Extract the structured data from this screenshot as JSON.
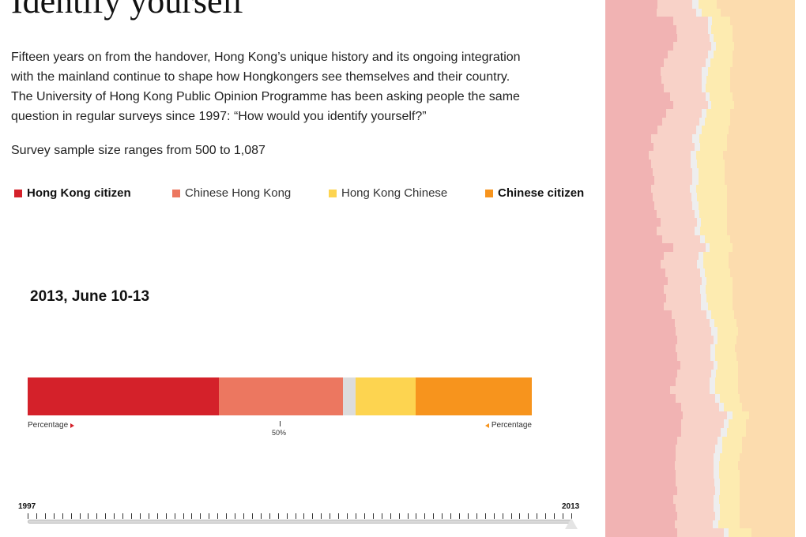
{
  "header": {
    "title": "Identify yourself",
    "intro": [
      "Fifteen years on from the handover, Hong Kong’s unique history and its ongoing integration",
      "with the mainland continue to shape how Hongkongers see themselves and their country.",
      "The University of Hong Kong Public Opinion Programme has been asking people the same",
      "question in regular surveys since 1997: “How would you identify yourself?”"
    ],
    "sample_note": "Survey sample size ranges from 500 to 1,087"
  },
  "legend": [
    {
      "label": "Hong Kong citizen",
      "color": "#d4212a",
      "bold": true
    },
    {
      "label": "Chinese Hong Kong",
      "color": "#ec7760",
      "bold": false
    },
    {
      "label": "Hong Kong Chinese",
      "color": "#fdd450",
      "bold": false
    },
    {
      "label": "Chinese citizen",
      "color": "#f7941d",
      "bold": true
    }
  ],
  "bar_labels": {
    "left": "Percentage",
    "right": "Percentage",
    "mid": "50%"
  },
  "timeline": {
    "start": "1997",
    "end": "2013",
    "selected": "2013",
    "tick_count": 64
  },
  "chart_data": [
    {
      "type": "bar",
      "title": "2013, June 10-13",
      "orientation": "horizontal-stacked",
      "xlim": [
        0,
        100
      ],
      "series": [
        {
          "name": "Hong Kong citizen",
          "values": [
            38
          ]
        },
        {
          "name": "Chinese Hong Kong",
          "values": [
            24.5
          ]
        },
        {
          "name": "",
          "values": [
            2.5
          ]
        },
        {
          "name": "Hong Kong Chinese",
          "values": [
            12
          ]
        },
        {
          "name": "Chinese citizen",
          "values": [
            23
          ]
        }
      ],
      "colors": [
        "#d4212a",
        "#ec7760",
        "#dcdcdc",
        "#fdd450",
        "#f7941d"
      ]
    },
    {
      "type": "area",
      "orientation": "horizontal-stacked",
      "colors": [
        "#f1b3b3",
        "#f8d2c8",
        "#eeeeee",
        "#fdebb0",
        "#fcdcae"
      ],
      "rows": [
        [
          27.5,
          18.3,
          3.5,
          9.6,
          41.1
        ],
        [
          27.0,
          21.0,
          3.0,
          10.0,
          39.0
        ],
        [
          36.0,
          18.0,
          2.4,
          9.6,
          34.0
        ],
        [
          37.5,
          16.5,
          2.0,
          11.0,
          33.0
        ],
        [
          38.0,
          17.0,
          2.0,
          10.0,
          33.0
        ],
        [
          36.0,
          20.0,
          2.5,
          9.5,
          32.0
        ],
        [
          33.0,
          21.0,
          3.0,
          10.0,
          33.0
        ],
        [
          31.0,
          22.0,
          2.5,
          11.5,
          33.0
        ],
        [
          29.0,
          22.0,
          3.0,
          12.0,
          34.0
        ],
        [
          29.5,
          21.5,
          2.5,
          12.5,
          34.0
        ],
        [
          31.0,
          20.0,
          2.0,
          13.0,
          34.0
        ],
        [
          34.0,
          19.0,
          2.0,
          12.0,
          33.0
        ],
        [
          36.0,
          18.0,
          2.0,
          12.0,
          32.0
        ],
        [
          32.0,
          19.0,
          2.5,
          12.5,
          34.0
        ],
        [
          30.0,
          19.5,
          3.0,
          13.5,
          34.0
        ],
        [
          27.5,
          20.5,
          3.0,
          14.0,
          35.0
        ],
        [
          24.0,
          22.0,
          3.5,
          14.5,
          36.0
        ],
        [
          25.5,
          21.5,
          3.0,
          14.0,
          36.0
        ],
        [
          23.0,
          22.0,
          3.0,
          14.0,
          38.0
        ],
        [
          24.0,
          21.0,
          3.5,
          14.5,
          37.0
        ],
        [
          25.0,
          21.0,
          3.0,
          14.0,
          37.0
        ],
        [
          26.0,
          20.0,
          3.0,
          14.0,
          37.0
        ],
        [
          24.0,
          20.5,
          3.5,
          16.0,
          36.0
        ],
        [
          25.0,
          20.5,
          3.0,
          15.5,
          36.0
        ],
        [
          26.0,
          20.0,
          3.0,
          15.0,
          36.0
        ],
        [
          27.0,
          20.0,
          2.5,
          14.5,
          36.0
        ],
        [
          29.0,
          19.5,
          2.0,
          13.5,
          36.0
        ],
        [
          27.0,
          20.0,
          3.0,
          14.0,
          36.0
        ],
        [
          30.0,
          20.0,
          2.5,
          13.5,
          34.0
        ],
        [
          36.0,
          17.0,
          2.0,
          12.0,
          33.0
        ],
        [
          31.0,
          18.0,
          2.5,
          13.5,
          35.0
        ],
        [
          29.0,
          19.5,
          3.0,
          13.5,
          35.0
        ],
        [
          31.5,
          18.5,
          2.5,
          13.5,
          34.0
        ],
        [
          33.0,
          18.0,
          2.5,
          13.5,
          33.0
        ],
        [
          31.0,
          19.0,
          3.0,
          14.0,
          33.0
        ],
        [
          32.0,
          18.5,
          3.0,
          13.5,
          33.0
        ],
        [
          31.0,
          19.5,
          3.5,
          13.0,
          33.0
        ],
        [
          35.0,
          18.5,
          2.5,
          12.0,
          32.0
        ],
        [
          36.5,
          18.5,
          2.5,
          11.5,
          31.0
        ],
        [
          37.0,
          19.0,
          3.0,
          11.0,
          30.0
        ],
        [
          38.0,
          19.0,
          2.0,
          10.0,
          31.0
        ],
        [
          37.0,
          18.5,
          2.5,
          10.5,
          31.5
        ],
        [
          38.0,
          17.5,
          2.5,
          11.0,
          31.0
        ],
        [
          39.5,
          17.5,
          2.0,
          11.0,
          30.0
        ],
        [
          38.0,
          18.0,
          2.5,
          11.5,
          30.0
        ],
        [
          37.0,
          18.0,
          3.0,
          12.0,
          30.0
        ],
        [
          34.0,
          21.0,
          3.0,
          12.0,
          30.0
        ],
        [
          37.0,
          21.0,
          2.5,
          10.5,
          29.0
        ],
        [
          40.0,
          20.0,
          2.5,
          9.5,
          28.0
        ],
        [
          41.0,
          23.0,
          3.0,
          9.0,
          24.0
        ],
        [
          40.0,
          22.5,
          2.5,
          9.0,
          26.0
        ],
        [
          40.0,
          21.0,
          3.0,
          10.0,
          26.0
        ],
        [
          38.0,
          21.0,
          2.5,
          10.5,
          28.0
        ],
        [
          37.0,
          21.0,
          3.5,
          10.5,
          28.0
        ],
        [
          37.0,
          20.0,
          3.5,
          10.5,
          29.0
        ],
        [
          36.5,
          20.5,
          3.0,
          10.0,
          30.0
        ],
        [
          37.0,
          20.0,
          3.0,
          11.0,
          29.0
        ],
        [
          37.0,
          20.5,
          3.0,
          10.5,
          29.0
        ],
        [
          38.0,
          20.0,
          2.5,
          10.5,
          29.0
        ],
        [
          36.0,
          21.0,
          3.0,
          11.0,
          29.0
        ],
        [
          37.0,
          20.0,
          3.5,
          10.5,
          29.0
        ],
        [
          38.0,
          20.0,
          2.5,
          10.5,
          29.0
        ],
        [
          36.5,
          20.0,
          3.0,
          11.5,
          29.0
        ],
        [
          38.0,
          24.5,
          2.5,
          12.0,
          23.0
        ]
      ]
    }
  ]
}
